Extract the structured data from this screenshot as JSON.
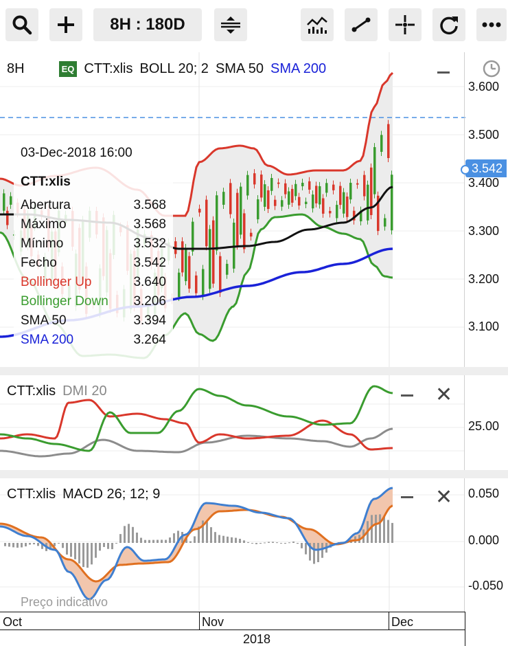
{
  "toolbar": {
    "range_label": "8H : 180D",
    "buttons": [
      "search-icon",
      "plus-icon",
      "range-selector",
      "expand-vertical-icon",
      "indicators-icon",
      "draw-line-icon",
      "crosshair-icon",
      "refresh-icon",
      "more-icon"
    ]
  },
  "main_chart": {
    "interval": "8H",
    "badge": "EQ",
    "symbol": "CTT:xlis",
    "boll": "BOLL 20; 2",
    "sma50": "SMA 50",
    "sma200": "SMA 200",
    "y_ticks": [
      "3.600",
      "3.500",
      "3.400",
      "3.300",
      "3.200",
      "3.100"
    ],
    "last_price": "3.542",
    "colors": {
      "up": "#d9372b",
      "down": "#3a9c2f",
      "sma200": "#1a22d8",
      "sma50": "#111111",
      "crosshair": "#4a90e2"
    }
  },
  "tooltip": {
    "date": "03-Dec-2018 16:00",
    "symbol": "CTT:xlis",
    "rows": [
      {
        "label": "Abertura",
        "value": "3.568"
      },
      {
        "label": "Máximo",
        "value": "3.568"
      },
      {
        "label": "Mínimo",
        "value": "3.532"
      },
      {
        "label": "Fecho",
        "value": "3.542"
      },
      {
        "label": "Bollinger Up",
        "value": "3.640"
      },
      {
        "label": "Bollinger Down",
        "value": "3.206"
      },
      {
        "label": "SMA 50",
        "value": "3.394"
      },
      {
        "label": "SMA 200",
        "value": "3.264"
      }
    ]
  },
  "dmi_pane": {
    "symbol": "CTT:xlis",
    "indicator": "DMI 20",
    "y_tick": "25.00"
  },
  "macd_pane": {
    "symbol": "CTT:xlis",
    "indicator": "MACD 26; 12; 9",
    "y_ticks": [
      "0.050",
      "0.000",
      "-0.050"
    ],
    "watermark": "Preço indicativo"
  },
  "time_axis": {
    "months": [
      "Oct",
      "Nov",
      "Dec"
    ],
    "year": "2018"
  }
}
